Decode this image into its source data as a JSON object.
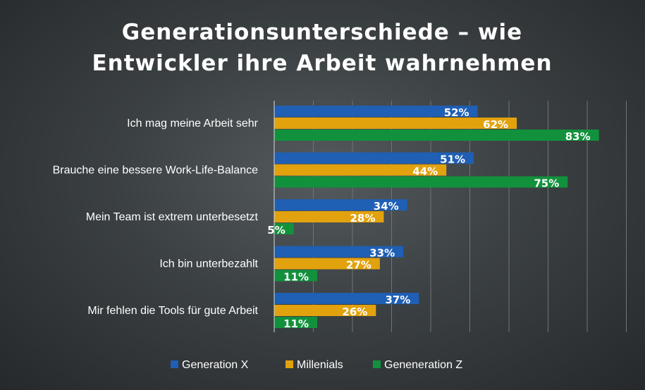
{
  "colors": {
    "background": "#3b4043",
    "generation_x": "#1f5fb4",
    "millenials": "#e2a20e",
    "generation_z": "#12913c",
    "text": "#ffffff",
    "gridline": "#6e7478"
  },
  "chart_data": {
    "type": "bar",
    "orientation": "horizontal",
    "title": "Generationsunterschiede – wie Entwickler ihre Arbeit wahrnehmen",
    "title_lines": [
      "Generationsunterschiede – wie",
      "Entwickler ihre Arbeit wahrnehmen"
    ],
    "categories": [
      "Ich mag meine Arbeit sehr",
      "Brauche eine bessere Work-Life-Balance",
      "Mein Team ist extrem unterbesetzt",
      "Ich bin unterbezahlt",
      "Mir fehlen die Tools für gute Arbeit"
    ],
    "series": [
      {
        "name": "Generation X",
        "color": "#1f5fb4",
        "values": [
          52,
          51,
          34,
          33,
          37
        ],
        "labels": [
          "52%",
          "51%",
          "34%",
          "33%",
          "37%"
        ]
      },
      {
        "name": "Millenials",
        "color": "#e2a20e",
        "values": [
          62,
          44,
          28,
          27,
          26
        ],
        "labels": [
          "62%",
          "44%",
          "28%",
          "27%",
          "26%"
        ]
      },
      {
        "name": "Geneneration Z",
        "color": "#12913c",
        "values": [
          83,
          75,
          5,
          11,
          11
        ],
        "labels": [
          "83%",
          "75%",
          "5%",
          "11%",
          "11%"
        ]
      }
    ],
    "xlim": [
      0,
      90
    ],
    "grid": true,
    "grid_step": 10,
    "legend_position": "bottom",
    "xlabel": "",
    "ylabel": ""
  }
}
